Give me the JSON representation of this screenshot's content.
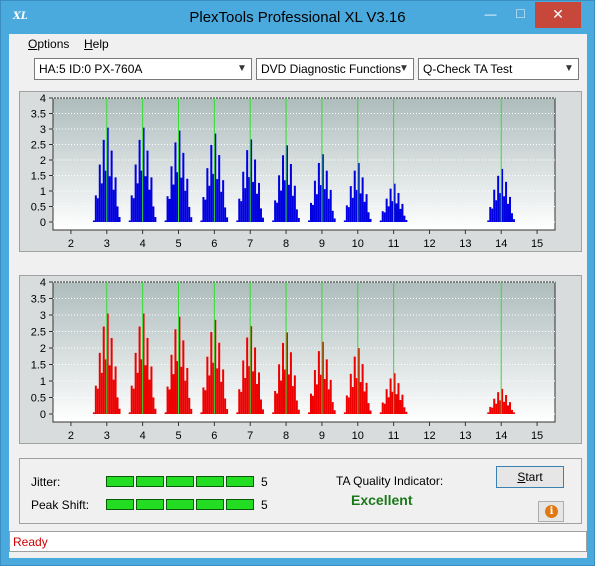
{
  "window": {
    "title": "PlexTools Professional XL V3.16",
    "icon_text": "XL",
    "minimize": "—",
    "maximize": "☐",
    "close": "✕"
  },
  "menu": {
    "options_first": "O",
    "options_rest": "ptions",
    "help_first": "H",
    "help_rest": "elp"
  },
  "toolbar": {
    "drive": "HA:5 ID:0  PX-760A",
    "function": "DVD Diagnostic Functions",
    "test": "Q-Check TA Test"
  },
  "colors": {
    "accent_blue": "#0000e0",
    "accent_red": "#ee0000",
    "marker_green": "#33dd33",
    "quality_text": "#1a7a1a",
    "status_text": "#d00000"
  },
  "chart_data": [
    {
      "type": "bar",
      "title": "",
      "xlabel": "",
      "ylabel": "",
      "xlim": [
        1.5,
        15.5
      ],
      "ylim": [
        0,
        4
      ],
      "x_ticks": [
        "2",
        "3",
        "4",
        "5",
        "6",
        "7",
        "8",
        "9",
        "10",
        "11",
        "12",
        "13",
        "14",
        "15"
      ],
      "y_ticks": [
        "0",
        "0.5",
        "1",
        "1.5",
        "2",
        "2.5",
        "3",
        "3.5",
        "4"
      ],
      "markers": [
        3,
        4,
        5,
        6,
        7,
        8,
        9,
        10,
        11,
        14
      ],
      "color": "#0000e0",
      "peaks": [
        {
          "center": 3,
          "height": 3.2
        },
        {
          "center": 4,
          "height": 3.2
        },
        {
          "center": 5,
          "height": 3.1
        },
        {
          "center": 6,
          "height": 3.0
        },
        {
          "center": 7,
          "height": 2.8
        },
        {
          "center": 8,
          "height": 2.6
        },
        {
          "center": 9,
          "height": 2.3
        },
        {
          "center": 10,
          "height": 2.0
        },
        {
          "center": 11,
          "height": 1.3
        },
        {
          "center": 14,
          "height": 1.8
        }
      ]
    },
    {
      "type": "bar",
      "title": "",
      "xlabel": "",
      "ylabel": "",
      "xlim": [
        1.5,
        15.5
      ],
      "ylim": [
        0,
        4
      ],
      "x_ticks": [
        "2",
        "3",
        "4",
        "5",
        "6",
        "7",
        "8",
        "9",
        "10",
        "11",
        "12",
        "13",
        "14",
        "15"
      ],
      "y_ticks": [
        "0",
        "0.5",
        "1",
        "1.5",
        "2",
        "2.5",
        "3",
        "3.5",
        "4"
      ],
      "markers": [
        3,
        4,
        5,
        6,
        7,
        8,
        9,
        10,
        11,
        14
      ],
      "color": "#ee0000",
      "peaks": [
        {
          "center": 3,
          "height": 3.2
        },
        {
          "center": 4,
          "height": 3.2
        },
        {
          "center": 5,
          "height": 3.1
        },
        {
          "center": 6,
          "height": 3.0
        },
        {
          "center": 7,
          "height": 2.8
        },
        {
          "center": 8,
          "height": 2.6
        },
        {
          "center": 9,
          "height": 2.3
        },
        {
          "center": 10,
          "height": 2.1
        },
        {
          "center": 11,
          "height": 1.3
        },
        {
          "center": 14,
          "height": 0.8
        }
      ]
    }
  ],
  "results": {
    "jitter_label": "Jitter:",
    "jitter_score": "5",
    "peak_shift_label": "Peak Shift:",
    "peak_shift_score": "5",
    "segments": 5,
    "quality_label": "TA Quality Indicator:",
    "quality_value": "Excellent",
    "start_first": "S",
    "start_rest": "tart",
    "info_icon": "i"
  },
  "status": {
    "text": "Ready"
  }
}
